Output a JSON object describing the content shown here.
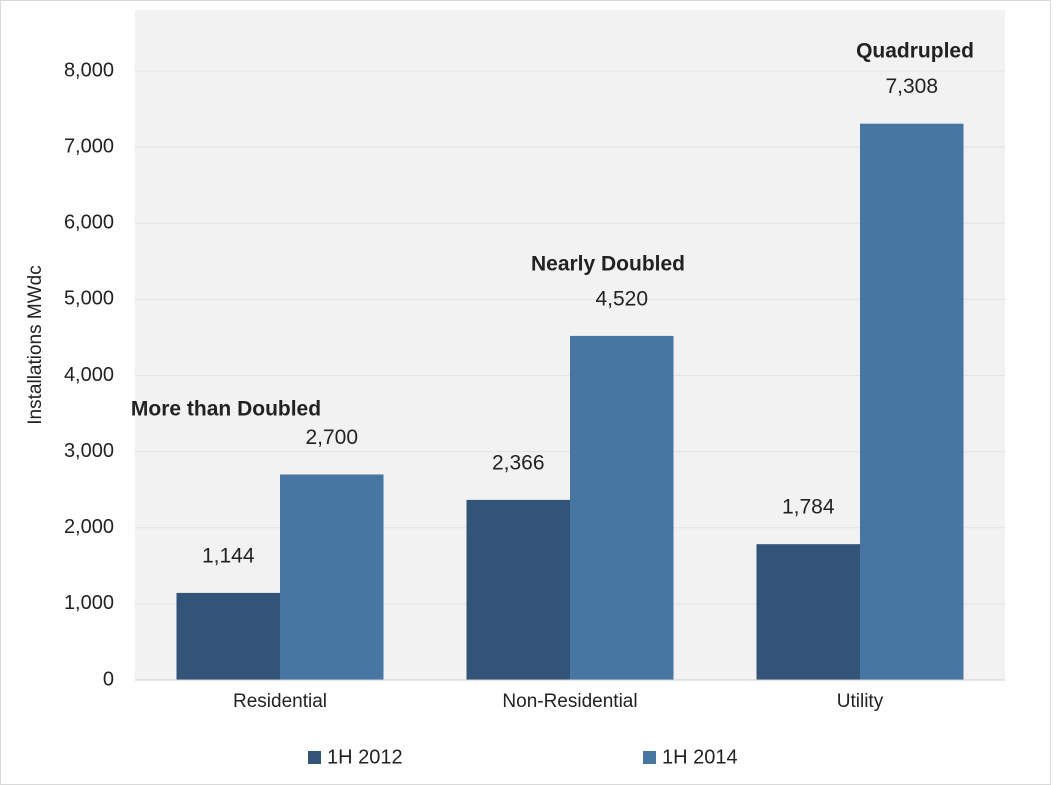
{
  "chart_data": {
    "type": "bar",
    "ylabel": "Installations MWdc",
    "categories": [
      "Residential",
      "Non-Residential",
      "Utility"
    ],
    "series": [
      {
        "name": "1H 2012",
        "color": "#325479",
        "values": [
          1144,
          2366,
          1784
        ],
        "value_labels": [
          "1,144",
          "2,366",
          "1,784"
        ]
      },
      {
        "name": "1H 2014",
        "color": "#4676a1",
        "values": [
          2700,
          4520,
          7308
        ],
        "value_labels": [
          "2,700",
          "4,520",
          "7,308"
        ]
      }
    ],
    "annotations": [
      "More than Doubled",
      "Nearly Doubled",
      "Quadrupled"
    ],
    "ylim": [
      0,
      8000
    ],
    "yticks": [
      0,
      {
        "value": 1000,
        "label": "1,000"
      },
      {
        "value": 2000,
        "label": "2,000"
      },
      {
        "value": 3000,
        "label": "3,000"
      },
      {
        "value": 4000,
        "label": "4,000"
      },
      {
        "value": 5000,
        "label": "5,000"
      },
      {
        "value": 6000,
        "label": "6,000"
      },
      {
        "value": 7000,
        "label": "7,000"
      },
      {
        "value": 8000,
        "label": "8,000"
      }
    ],
    "grid": true,
    "legend": "bottom"
  }
}
